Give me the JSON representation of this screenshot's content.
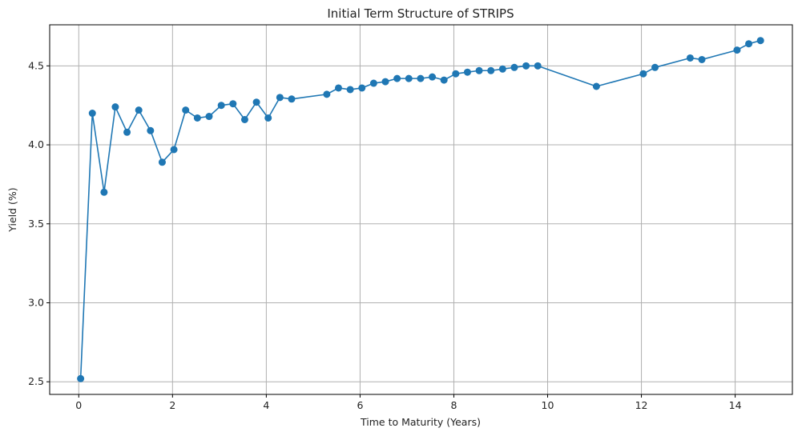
{
  "chart_data": {
    "type": "line",
    "title": "Initial Term Structure of STRIPS",
    "xlabel": "Time to Maturity (Years)",
    "ylabel": "Yield (%)",
    "xlim": [
      -0.62,
      15.22
    ],
    "ylim": [
      2.42,
      4.76
    ],
    "xticks": [
      0,
      2,
      4,
      6,
      8,
      10,
      12,
      14
    ],
    "yticks": [
      2.5,
      3.0,
      3.5,
      4.0,
      4.5
    ],
    "xtick_labels": [
      "0",
      "2",
      "4",
      "6",
      "8",
      "10",
      "12",
      "14"
    ],
    "ytick_labels": [
      "2.5",
      "3.0",
      "3.5",
      "4.0",
      "4.5"
    ],
    "grid": true,
    "legend": false,
    "series": [
      {
        "color": "#1f77b4",
        "marker": "circle",
        "x": [
          0.04,
          0.29,
          0.54,
          0.78,
          1.03,
          1.28,
          1.53,
          1.78,
          2.03,
          2.28,
          2.53,
          2.78,
          3.04,
          3.29,
          3.54,
          3.79,
          4.04,
          4.29,
          4.54,
          5.29,
          5.54,
          5.79,
          6.04,
          6.29,
          6.54,
          6.79,
          7.04,
          7.29,
          7.54,
          7.79,
          8.04,
          8.29,
          8.54,
          8.79,
          9.04,
          9.29,
          9.54,
          9.79,
          11.04,
          12.04,
          12.29,
          13.04,
          13.29,
          14.04,
          14.29,
          14.54
        ],
        "y": [
          2.52,
          4.2,
          3.7,
          4.24,
          4.08,
          4.22,
          4.09,
          3.89,
          3.97,
          4.22,
          4.17,
          4.18,
          4.25,
          4.26,
          4.16,
          4.27,
          4.17,
          4.3,
          4.29,
          4.32,
          4.36,
          4.35,
          4.36,
          4.39,
          4.4,
          4.42,
          4.42,
          4.42,
          4.43,
          4.41,
          4.45,
          4.46,
          4.47,
          4.47,
          4.48,
          4.49,
          4.5,
          4.5,
          4.37,
          4.45,
          4.49,
          4.55,
          4.54,
          4.6,
          4.64,
          4.66
        ]
      }
    ]
  }
}
